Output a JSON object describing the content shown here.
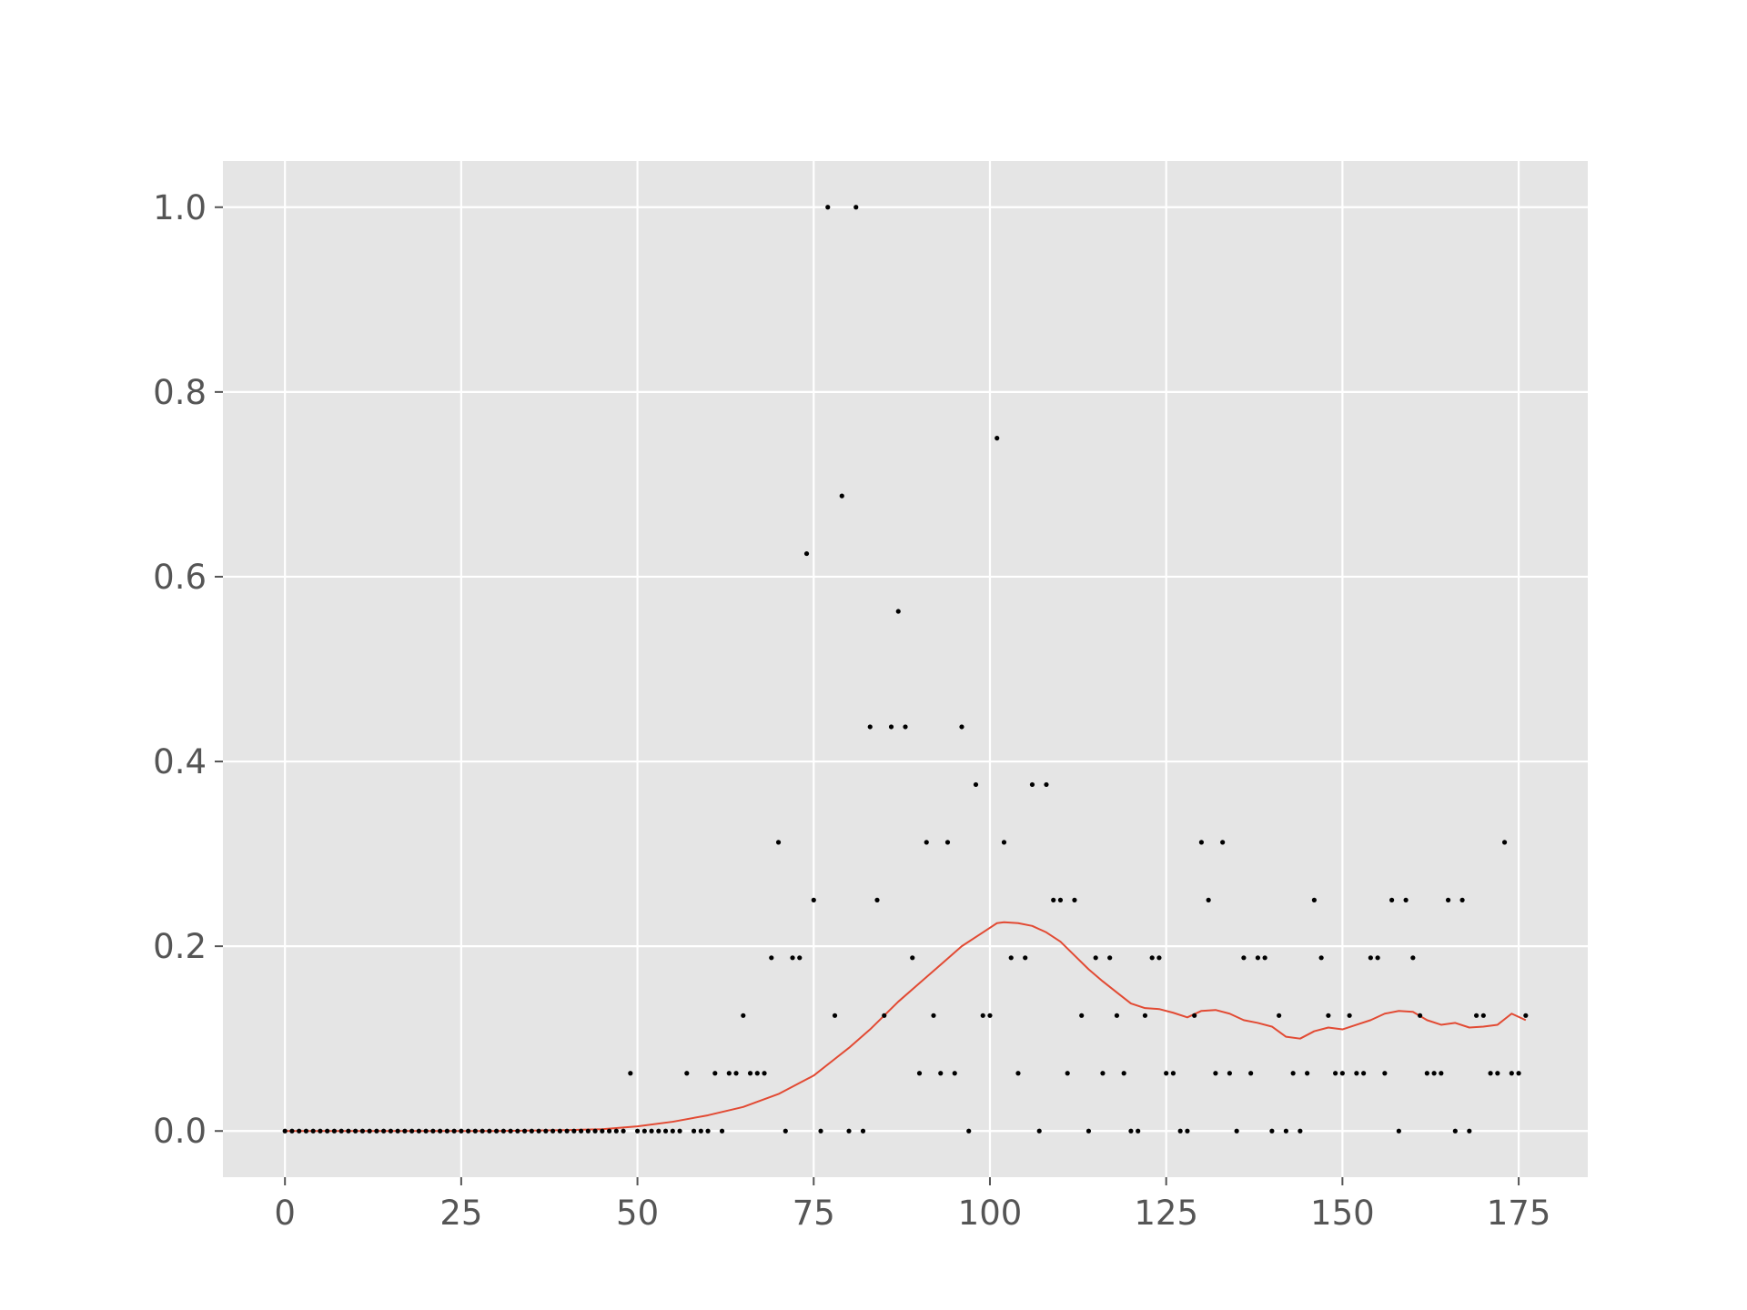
{
  "chart_data": {
    "type": "scatter",
    "title": "",
    "xlabel": "",
    "ylabel": "",
    "xlim": [
      -8.8,
      184.8
    ],
    "ylim": [
      -0.05,
      1.05
    ],
    "grid": true,
    "legend": "none",
    "x_ticks": [
      {
        "value": 0,
        "label": "0"
      },
      {
        "value": 25,
        "label": "25"
      },
      {
        "value": 50,
        "label": "50"
      },
      {
        "value": 75,
        "label": "75"
      },
      {
        "value": 100,
        "label": "100"
      },
      {
        "value": 125,
        "label": "125"
      },
      {
        "value": 150,
        "label": "150"
      },
      {
        "value": 175,
        "label": "175"
      }
    ],
    "y_ticks": [
      {
        "value": 0.0,
        "label": "0.0"
      },
      {
        "value": 0.2,
        "label": "0.2"
      },
      {
        "value": 0.4,
        "label": "0.4"
      },
      {
        "value": 0.6,
        "label": "0.6"
      },
      {
        "value": 0.8,
        "label": "0.8"
      },
      {
        "value": 1.0,
        "label": "1.0"
      }
    ],
    "colors": {
      "background": "#e5e5e5",
      "grid": "#ffffff",
      "points": "#000000",
      "line": "#e24a33",
      "tick_label": "#555555",
      "tick_mark": "#555555"
    },
    "points": [
      [
        0,
        0
      ],
      [
        1,
        0
      ],
      [
        2,
        0
      ],
      [
        3,
        0
      ],
      [
        4,
        0
      ],
      [
        5,
        0
      ],
      [
        6,
        0
      ],
      [
        7,
        0
      ],
      [
        8,
        0
      ],
      [
        9,
        0
      ],
      [
        10,
        0
      ],
      [
        11,
        0
      ],
      [
        12,
        0
      ],
      [
        13,
        0
      ],
      [
        14,
        0
      ],
      [
        15,
        0
      ],
      [
        16,
        0
      ],
      [
        17,
        0
      ],
      [
        18,
        0
      ],
      [
        19,
        0
      ],
      [
        20,
        0
      ],
      [
        21,
        0
      ],
      [
        22,
        0
      ],
      [
        23,
        0
      ],
      [
        24,
        0
      ],
      [
        25,
        0
      ],
      [
        26,
        0
      ],
      [
        27,
        0
      ],
      [
        28,
        0
      ],
      [
        29,
        0
      ],
      [
        30,
        0
      ],
      [
        31,
        0
      ],
      [
        32,
        0
      ],
      [
        33,
        0
      ],
      [
        34,
        0
      ],
      [
        35,
        0
      ],
      [
        36,
        0
      ],
      [
        37,
        0
      ],
      [
        38,
        0
      ],
      [
        39,
        0
      ],
      [
        40,
        0
      ],
      [
        41,
        0
      ],
      [
        42,
        0
      ],
      [
        43,
        0
      ],
      [
        44,
        0
      ],
      [
        45,
        0
      ],
      [
        46,
        0
      ],
      [
        47,
        0
      ],
      [
        48,
        0
      ],
      [
        49,
        0.0625
      ],
      [
        50,
        0
      ],
      [
        51,
        0
      ],
      [
        52,
        0
      ],
      [
        53,
        0
      ],
      [
        54,
        0
      ],
      [
        55,
        0
      ],
      [
        56,
        0
      ],
      [
        57,
        0.0625
      ],
      [
        58,
        0
      ],
      [
        59,
        0
      ],
      [
        60,
        0
      ],
      [
        61,
        0.0625
      ],
      [
        62,
        0
      ],
      [
        63,
        0.0625
      ],
      [
        64,
        0.0625
      ],
      [
        65,
        0.125
      ],
      [
        66,
        0.0625
      ],
      [
        67,
        0.0625
      ],
      [
        68,
        0.0625
      ],
      [
        69,
        0.1875
      ],
      [
        70,
        0.3125
      ],
      [
        71,
        0
      ],
      [
        72,
        0.1875
      ],
      [
        73,
        0.1875
      ],
      [
        74,
        0.625
      ],
      [
        75,
        0.25
      ],
      [
        76,
        0
      ],
      [
        77,
        1.0
      ],
      [
        78,
        0.125
      ],
      [
        79,
        0.6875
      ],
      [
        80,
        0
      ],
      [
        81,
        1.0
      ],
      [
        82,
        0
      ],
      [
        83,
        0.4375
      ],
      [
        84,
        0.25
      ],
      [
        85,
        0.125
      ],
      [
        86,
        0.4375
      ],
      [
        87,
        0.5625
      ],
      [
        88,
        0.4375
      ],
      [
        89,
        0.1875
      ],
      [
        90,
        0.0625
      ],
      [
        91,
        0.3125
      ],
      [
        92,
        0.125
      ],
      [
        93,
        0.0625
      ],
      [
        94,
        0.3125
      ],
      [
        95,
        0.0625
      ],
      [
        96,
        0.4375
      ],
      [
        97,
        0
      ],
      [
        98,
        0.375
      ],
      [
        99,
        0.125
      ],
      [
        100,
        0.125
      ],
      [
        101,
        0.75
      ],
      [
        102,
        0.3125
      ],
      [
        103,
        0.1875
      ],
      [
        104,
        0.0625
      ],
      [
        105,
        0.1875
      ],
      [
        106,
        0.375
      ],
      [
        107,
        0
      ],
      [
        108,
        0.375
      ],
      [
        109,
        0.25
      ],
      [
        110,
        0.25
      ],
      [
        111,
        0.0625
      ],
      [
        112,
        0.25
      ],
      [
        113,
        0.125
      ],
      [
        114,
        0
      ],
      [
        115,
        0.1875
      ],
      [
        116,
        0.0625
      ],
      [
        117,
        0.1875
      ],
      [
        118,
        0.125
      ],
      [
        119,
        0.0625
      ],
      [
        120,
        0
      ],
      [
        121,
        0
      ],
      [
        122,
        0.125
      ],
      [
        123,
        0.1875
      ],
      [
        124,
        0.1875
      ],
      [
        125,
        0.0625
      ],
      [
        126,
        0.0625
      ],
      [
        127,
        0
      ],
      [
        128,
        0
      ],
      [
        129,
        0.125
      ],
      [
        130,
        0.3125
      ],
      [
        131,
        0.25
      ],
      [
        132,
        0.0625
      ],
      [
        133,
        0.3125
      ],
      [
        134,
        0.0625
      ],
      [
        135,
        0
      ],
      [
        136,
        0.1875
      ],
      [
        137,
        0.0625
      ],
      [
        138,
        0.1875
      ],
      [
        139,
        0.1875
      ],
      [
        140,
        0
      ],
      [
        141,
        0.125
      ],
      [
        142,
        0
      ],
      [
        143,
        0.0625
      ],
      [
        144,
        0
      ],
      [
        145,
        0.0625
      ],
      [
        146,
        0.25
      ],
      [
        147,
        0.1875
      ],
      [
        148,
        0.125
      ],
      [
        149,
        0.0625
      ],
      [
        150,
        0.0625
      ],
      [
        151,
        0.125
      ],
      [
        152,
        0.0625
      ],
      [
        153,
        0.0625
      ],
      [
        154,
        0.1875
      ],
      [
        155,
        0.1875
      ],
      [
        156,
        0.0625
      ],
      [
        157,
        0.25
      ],
      [
        158,
        0
      ],
      [
        159,
        0.25
      ],
      [
        160,
        0.1875
      ],
      [
        161,
        0.125
      ],
      [
        162,
        0.0625
      ],
      [
        163,
        0.0625
      ],
      [
        164,
        0.0625
      ],
      [
        165,
        0.25
      ],
      [
        166,
        0
      ],
      [
        167,
        0.25
      ],
      [
        168,
        0
      ],
      [
        169,
        0.125
      ],
      [
        170,
        0.125
      ],
      [
        171,
        0.0625
      ],
      [
        172,
        0.0625
      ],
      [
        173,
        0.3125
      ],
      [
        174,
        0.0625
      ],
      [
        175,
        0.0625
      ],
      [
        176,
        0.125
      ]
    ],
    "line": [
      [
        0,
        0
      ],
      [
        20,
        0
      ],
      [
        30,
        0
      ],
      [
        40,
        0.001
      ],
      [
        45,
        0.002
      ],
      [
        50,
        0.005
      ],
      [
        55,
        0.01
      ],
      [
        60,
        0.017
      ],
      [
        65,
        0.026
      ],
      [
        70,
        0.04
      ],
      [
        75,
        0.06
      ],
      [
        78,
        0.078
      ],
      [
        80,
        0.09
      ],
      [
        83,
        0.11
      ],
      [
        85,
        0.125
      ],
      [
        87,
        0.14
      ],
      [
        90,
        0.16
      ],
      [
        93,
        0.18
      ],
      [
        96,
        0.2
      ],
      [
        99,
        0.215
      ],
      [
        101,
        0.225
      ],
      [
        102,
        0.226
      ],
      [
        104,
        0.225
      ],
      [
        106,
        0.222
      ],
      [
        108,
        0.215
      ],
      [
        110,
        0.205
      ],
      [
        112,
        0.19
      ],
      [
        114,
        0.175
      ],
      [
        116,
        0.162
      ],
      [
        118,
        0.15
      ],
      [
        120,
        0.138
      ],
      [
        122,
        0.133
      ],
      [
        124,
        0.132
      ],
      [
        126,
        0.128
      ],
      [
        128,
        0.123
      ],
      [
        130,
        0.13
      ],
      [
        132,
        0.131
      ],
      [
        134,
        0.127
      ],
      [
        136,
        0.12
      ],
      [
        138,
        0.117
      ],
      [
        140,
        0.113
      ],
      [
        142,
        0.102
      ],
      [
        144,
        0.1
      ],
      [
        146,
        0.108
      ],
      [
        148,
        0.112
      ],
      [
        150,
        0.11
      ],
      [
        152,
        0.115
      ],
      [
        154,
        0.12
      ],
      [
        156,
        0.127
      ],
      [
        158,
        0.13
      ],
      [
        160,
        0.129
      ],
      [
        162,
        0.12
      ],
      [
        164,
        0.115
      ],
      [
        166,
        0.117
      ],
      [
        168,
        0.112
      ],
      [
        170,
        0.113
      ],
      [
        172,
        0.115
      ],
      [
        174,
        0.127
      ],
      [
        176,
        0.12
      ]
    ]
  }
}
